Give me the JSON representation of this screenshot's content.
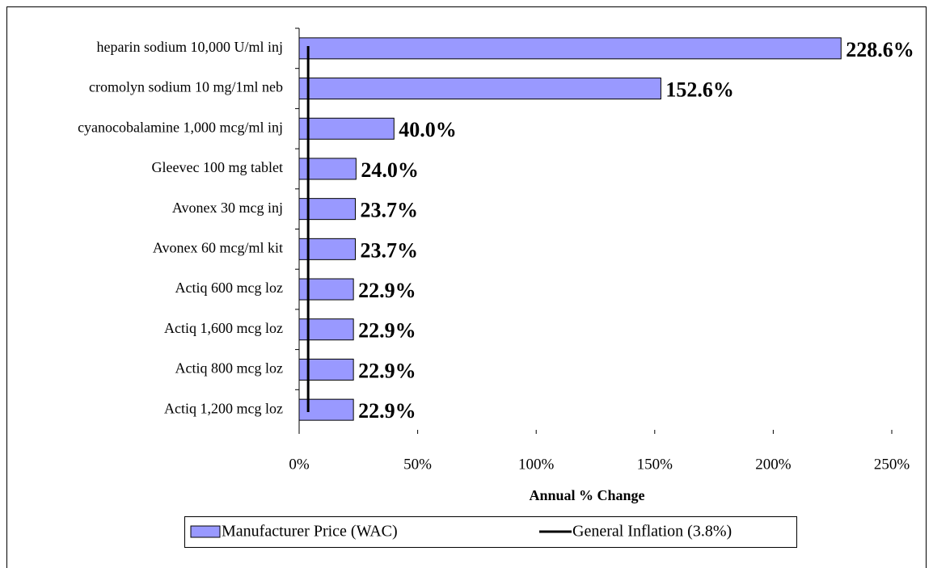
{
  "chart_data": {
    "type": "bar",
    "orientation": "horizontal",
    "xlabel": "Annual % Change",
    "categories": [
      "heparin sodium 10,000 U/ml inj",
      "cromolyn sodium 10 mg/1ml neb",
      "cyanocobalamine 1,000 mcg/ml inj",
      "Gleevec 100 mg tablet",
      "Avonex 30 mcg inj",
      "Avonex 60 mcg/ml kit",
      "Actiq 600 mcg loz",
      "Actiq 1,600 mcg loz",
      "Actiq 800 mcg loz",
      "Actiq 1,200 mcg loz"
    ],
    "series": [
      {
        "name": "Manufacturer Price (WAC)",
        "color": "#9999ff",
        "values": [
          228.6,
          152.6,
          40.0,
          24.0,
          23.7,
          23.7,
          22.9,
          22.9,
          22.9,
          22.9
        ],
        "value_labels": [
          "228.6%",
          "152.6%",
          "40.0%",
          "24.0%",
          "23.7%",
          "23.7%",
          "22.9%",
          "22.9%",
          "22.9%",
          "22.9%"
        ]
      }
    ],
    "reference_line": {
      "name": "General Inflation (3.8%)",
      "value": 3.8,
      "color": "#000000"
    },
    "xlim": [
      0,
      250
    ],
    "xticks": [
      {
        "value": 0,
        "label": "0%"
      },
      {
        "value": 50,
        "label": "50%"
      },
      {
        "value": 100,
        "label": "100%"
      },
      {
        "value": 150,
        "label": "150%"
      },
      {
        "value": 200,
        "label": "200%"
      },
      {
        "value": 250,
        "label": "250%"
      }
    ],
    "legend": "bottom"
  }
}
